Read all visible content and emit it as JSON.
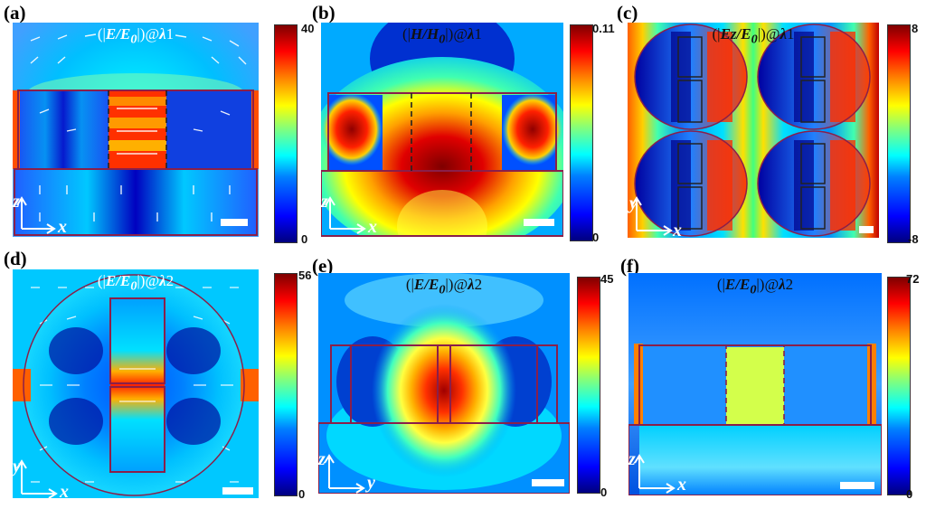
{
  "panels": [
    {
      "label": "(a)",
      "title": "(|E/E0|)@λ1",
      "title_parts": [
        "(|",
        "E/E",
        "0",
        "|)@",
        "λ",
        "1"
      ],
      "cbar_max": "40",
      "cbar_min": "0",
      "axes": [
        "z",
        "x"
      ]
    },
    {
      "label": "(b)",
      "title": "(|H/H0|)@λ1",
      "title_parts": [
        "(|",
        "H/H",
        "0",
        "|)@",
        "λ",
        "1"
      ],
      "cbar_max": "0.11",
      "cbar_min": "0",
      "axes": [
        "z",
        "x"
      ]
    },
    {
      "label": "(c)",
      "title": "(|Ez/E0|)@λ1",
      "title_parts": [
        "(|",
        "Ez/E",
        "0",
        "|)@",
        "λ",
        "1"
      ],
      "cbar_max": "8",
      "cbar_min": "-8",
      "axes": [
        "y",
        "x"
      ]
    },
    {
      "label": "(d)",
      "title": "(|E/E0|)@λ2",
      "title_parts": [
        "(|",
        "E/E",
        "0",
        "|)@",
        "λ",
        "2"
      ],
      "cbar_max": "56",
      "cbar_min": "0",
      "axes": [
        "y",
        "x"
      ]
    },
    {
      "label": "(e)",
      "title": "(|E/E0|)@λ2",
      "title_parts": [
        "(|",
        "E/E",
        "0",
        "|)@",
        "λ",
        "2"
      ],
      "cbar_max": "45",
      "cbar_min": "0",
      "axes": [
        "z",
        "y"
      ]
    },
    {
      "label": "(f)",
      "title": "(|E/E0|)@λ2",
      "title_parts": [
        "(|",
        "E/E",
        "0",
        "|)@",
        "λ",
        "2"
      ],
      "cbar_max": "72",
      "cbar_min": "0",
      "axes": [
        "z",
        "x"
      ]
    }
  ],
  "colormap": [
    "#00007f",
    "#0000ff",
    "#007fff",
    "#00ffff",
    "#7fff7f",
    "#ffff00",
    "#ff7f00",
    "#ff0000",
    "#7f0000"
  ],
  "outline_color": "#8a1f4a"
}
